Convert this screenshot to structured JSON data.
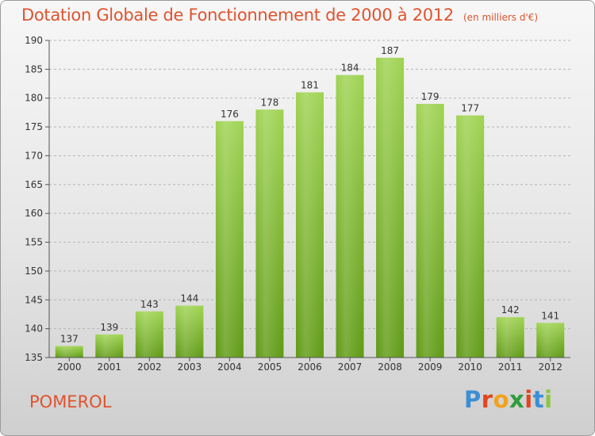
{
  "header": {
    "title": "Dotation Globale de Fonctionnement de 2000 à 2012",
    "unit": "(en milliers d'€)"
  },
  "footer": {
    "commune": "POMEROL",
    "logo_letters": [
      {
        "char": "P",
        "color": "#3b8fd4"
      },
      {
        "char": "r",
        "color": "#e2451f"
      },
      {
        "char": "o",
        "color": "#f2a11c"
      },
      {
        "char": "x",
        "color": "#2f9c3a"
      },
      {
        "char": "i",
        "color": "#e2451f"
      },
      {
        "char": "t",
        "color": "#3b8fd4"
      },
      {
        "char": "i",
        "color": "#8cc63f"
      }
    ]
  },
  "colors": {
    "title": "#e0532e",
    "bar_light": "#9fd352",
    "bar_dark": "#5f9a14",
    "grid": "#b5b5b5"
  },
  "chart_data": {
    "type": "bar",
    "title": "Dotation Globale de Fonctionnement de 2000 à 2012",
    "subtitle": "(en milliers d'€)",
    "xlabel": "",
    "ylabel": "",
    "categories": [
      "2000",
      "2001",
      "2002",
      "2003",
      "2004",
      "2005",
      "2006",
      "2007",
      "2008",
      "2009",
      "2010",
      "2011",
      "2012"
    ],
    "values": [
      137,
      139,
      143,
      144,
      176,
      178,
      181,
      184,
      187,
      179,
      177,
      142,
      141
    ],
    "ylim": [
      135,
      190
    ],
    "yticks": [
      135,
      140,
      145,
      150,
      155,
      160,
      165,
      170,
      175,
      180,
      185,
      190
    ],
    "grid": true,
    "data_labels": true
  }
}
